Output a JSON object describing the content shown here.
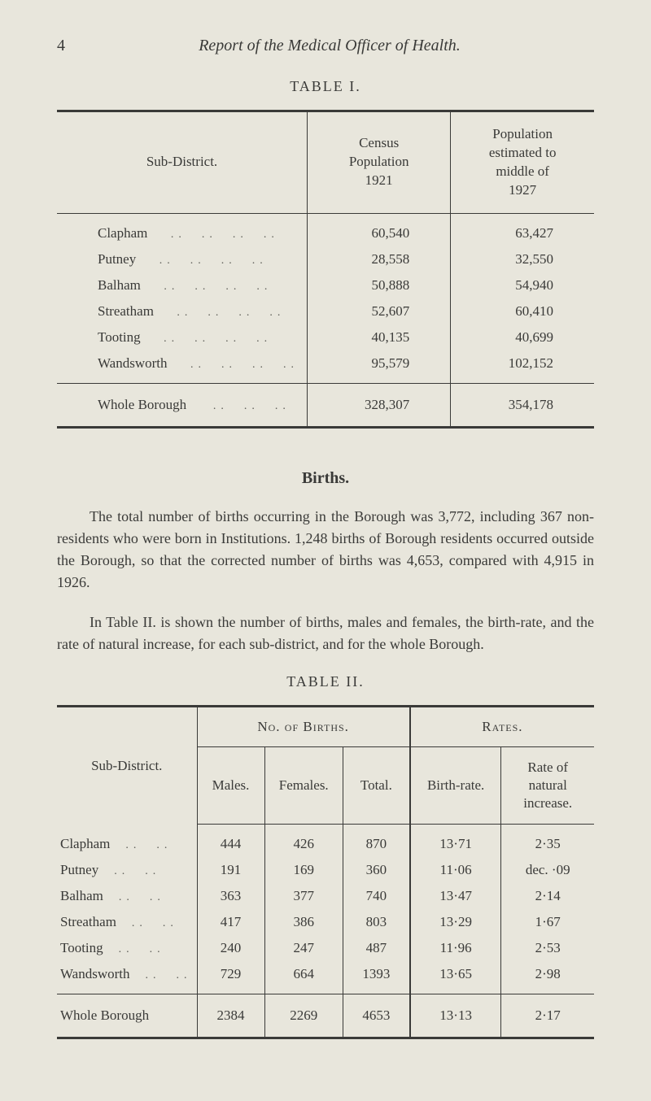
{
  "page": {
    "number": "4",
    "running_title": "Report of the Medical Officer of Health."
  },
  "table1": {
    "caption": "TABLE I.",
    "headers": {
      "sub_district": "Sub-District.",
      "census": "Census\nPopulation\n1921",
      "pop_est": "Population\nestimated to\nmiddle of\n1927"
    },
    "rows": [
      {
        "name": "Clapham",
        "census": "60,540",
        "pop": "63,427"
      },
      {
        "name": "Putney",
        "census": "28,558",
        "pop": "32,550"
      },
      {
        "name": "Balham",
        "census": "50,888",
        "pop": "54,940"
      },
      {
        "name": "Streatham",
        "census": "52,607",
        "pop": "60,410"
      },
      {
        "name": "Tooting",
        "census": "40,135",
        "pop": "40,699"
      },
      {
        "name": "Wandsworth",
        "census": "95,579",
        "pop": "102,152"
      }
    ],
    "total": {
      "name": "Whole Borough",
      "census": "328,307",
      "pop": "354,178"
    }
  },
  "section": {
    "heading": "Births.",
    "para1": "The total number of births occurring in the Borough was 3,772, including 367 non-residents who were born in Institutions. 1,248 births of Borough residents occurred outside the Borough, so that the corrected number of births was 4,653, compared with 4,915 in 1926.",
    "para2": "In Table II. is shown the number of births, males and females, the birth-rate, and the rate of natural increase, for each sub-district, and for the whole Borough."
  },
  "table2": {
    "caption": "TABLE II.",
    "group_headers": {
      "sub_district": "Sub-District.",
      "no_births": "No. of Births.",
      "rates": "Rates."
    },
    "sub_headers": {
      "males": "Males.",
      "females": "Females.",
      "total": "Total.",
      "birth_rate": "Birth-rate.",
      "rate_inc": "Rate of\nnatural\nincrease."
    },
    "rows": [
      {
        "name": "Clapham",
        "m": "444",
        "f": "426",
        "t": "870",
        "br": "13·71",
        "ri": "2·35"
      },
      {
        "name": "Putney",
        "m": "191",
        "f": "169",
        "t": "360",
        "br": "11·06",
        "ri": "dec. ·09"
      },
      {
        "name": "Balham",
        "m": "363",
        "f": "377",
        "t": "740",
        "br": "13·47",
        "ri": "2·14"
      },
      {
        "name": "Streatham",
        "m": "417",
        "f": "386",
        "t": "803",
        "br": "13·29",
        "ri": "1·67"
      },
      {
        "name": "Tooting",
        "m": "240",
        "f": "247",
        "t": "487",
        "br": "11·96",
        "ri": "2·53"
      },
      {
        "name": "Wandsworth",
        "m": "729",
        "f": "664",
        "t": "1393",
        "br": "13·65",
        "ri": "2·98"
      }
    ],
    "total": {
      "name": "Whole Borough",
      "m": "2384",
      "f": "2269",
      "t": "4653",
      "br": "13·13",
      "ri": "2·17"
    }
  }
}
